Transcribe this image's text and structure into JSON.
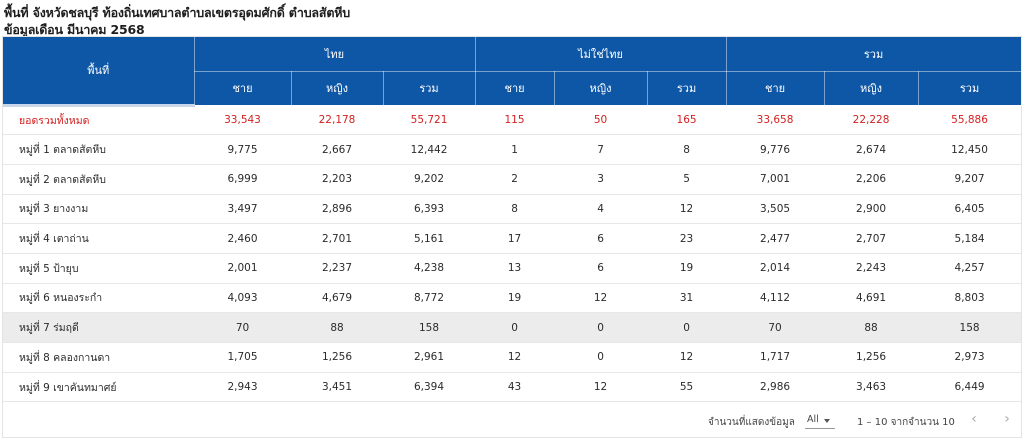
{
  "title": "พื้นที่ จังหวัดชลบุรี ท้องถิ่นเทศบาลตำบลเขตรอุดมศักดิ์ ตำบลสัตหีบ",
  "subtitle": "ข้อมูลเดือน มีนาคม 2568",
  "table": {
    "area_header": "พื้นที่",
    "groups": [
      "ไทย",
      "ไม่ใช่ไทย",
      "รวม"
    ],
    "sub_headers": [
      "ชาย",
      "หญิง",
      "รวม",
      "ชาย",
      "หญิง",
      "รวม",
      "ชาย",
      "หญิง",
      "รวม"
    ],
    "rows": [
      {
        "name": "ยอดรวมทั้งหมด",
        "cells": [
          "33,543",
          "22,178",
          "55,721",
          "115",
          "50",
          "165",
          "33,658",
          "22,228",
          "55,886"
        ]
      },
      {
        "name": "หมู่ที่ 1 ตลาดสัตหีบ",
        "cells": [
          "9,775",
          "2,667",
          "12,442",
          "1",
          "7",
          "8",
          "9,776",
          "2,674",
          "12,450"
        ]
      },
      {
        "name": "หมู่ที่ 2 ตลาดสัตหีบ",
        "cells": [
          "6,999",
          "2,203",
          "9,202",
          "2",
          "3",
          "5",
          "7,001",
          "2,206",
          "9,207"
        ]
      },
      {
        "name": "หมู่ที่ 3 ยางงาม",
        "cells": [
          "3,497",
          "2,896",
          "6,393",
          "8",
          "4",
          "12",
          "3,505",
          "2,900",
          "6,405"
        ]
      },
      {
        "name": "หมู่ที่ 4 เตาถ่าน",
        "cells": [
          "2,460",
          "2,701",
          "5,161",
          "17",
          "6",
          "23",
          "2,477",
          "2,707",
          "5,184"
        ]
      },
      {
        "name": "หมู่ที่ 5 ป้ายุบ",
        "cells": [
          "2,001",
          "2,237",
          "4,238",
          "13",
          "6",
          "19",
          "2,014",
          "2,243",
          "4,257"
        ]
      },
      {
        "name": "หมู่ที่ 6 หนองระกำ",
        "cells": [
          "4,093",
          "4,679",
          "8,772",
          "19",
          "12",
          "31",
          "4,112",
          "4,691",
          "8,803"
        ]
      },
      {
        "name": "หมู่ที่ 7 ร่มฤดี",
        "cells": [
          "70",
          "88",
          "158",
          "0",
          "0",
          "0",
          "70",
          "88",
          "158"
        ]
      },
      {
        "name": "หมู่ที่ 8 คลองกานดา",
        "cells": [
          "1,705",
          "1,256",
          "2,961",
          "12",
          "0",
          "12",
          "1,717",
          "1,256",
          "2,973"
        ]
      },
      {
        "name": "หมู่ที่ 9 เขาคันทมาศย์",
        "cells": [
          "2,943",
          "3,451",
          "6,394",
          "43",
          "12",
          "55",
          "2,986",
          "3,463",
          "6,449"
        ]
      }
    ]
  },
  "footer": {
    "rows_label": "จำนวนที่แสดงข้อมูล",
    "rows_value": "All",
    "range_text": "1 – 10 จากจำนวน 10",
    "prev": "‹",
    "next": "›"
  },
  "colors": {
    "header_bg": "#0e56a6",
    "total_text": "#d32020",
    "shaded_row": "#ececec"
  }
}
